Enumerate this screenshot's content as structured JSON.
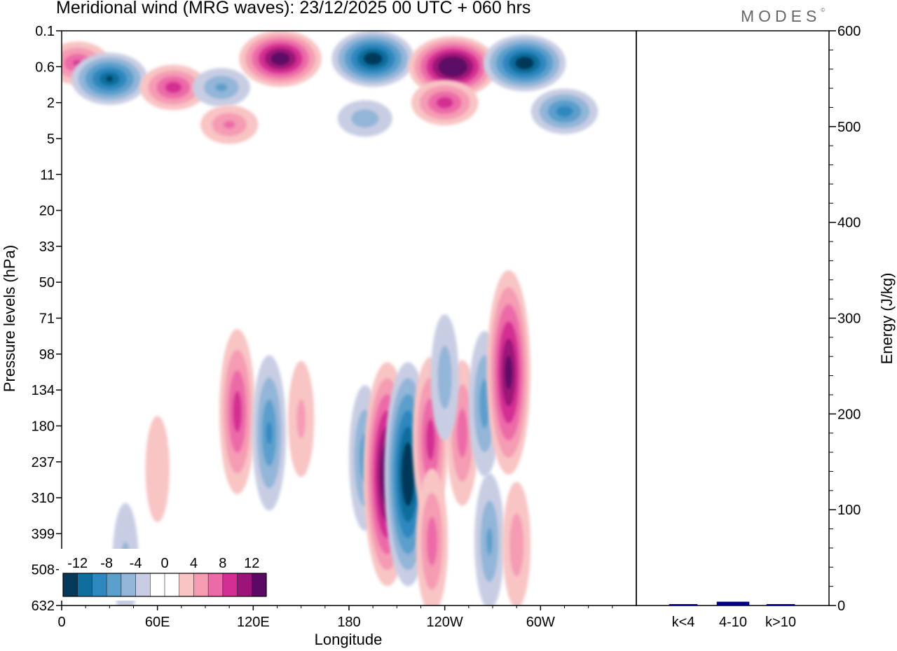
{
  "chart_data": [
    {
      "type": "heatmap",
      "title": "Meridional wind (MRG waves):  23/12/2025  00 UTC  + 060 hrs",
      "xlabel": "Longitude",
      "ylabel": "Pressure levels (hPa)",
      "x_ticks": [
        "0",
        "60E",
        "120E",
        "180",
        "120W",
        "60W"
      ],
      "y_ticks": [
        "0.1",
        "0.6",
        "2",
        "5",
        "11",
        "20",
        "33",
        "50",
        "71",
        "98",
        "134",
        "180",
        "237",
        "310",
        "399",
        "508",
        "632"
      ],
      "colorbar": {
        "labels": [
          "-12",
          "-8",
          "-4",
          "0",
          "4",
          "8",
          "12"
        ],
        "colors": [
          "#06385a",
          "#0f6e9e",
          "#2e88bf",
          "#5b9fcc",
          "#92b5d8",
          "#c8cde3",
          "#ffffff",
          "#ffffff",
          "#f8c4c4",
          "#f59bb3",
          "#ec6aa8",
          "#d42d93",
          "#9c1477",
          "#5c0966"
        ]
      },
      "features": [
        {
          "lon": 10,
          "level": 0.5,
          "value": 8
        },
        {
          "lon": 30,
          "level": 0.9,
          "value": -12
        },
        {
          "lon": 70,
          "level": 1.2,
          "value": 9
        },
        {
          "lon": 100,
          "level": 1.2,
          "value": -6
        },
        {
          "lon": 137,
          "level": 0.4,
          "value": 14
        },
        {
          "lon": 195,
          "level": 0.4,
          "value": -14
        },
        {
          "lon": 245,
          "level": 0.6,
          "value": 16
        },
        {
          "lon": 290,
          "level": 0.5,
          "value": -14
        },
        {
          "lon": 240,
          "level": 2.0,
          "value": 9
        },
        {
          "lon": 315,
          "level": 2.5,
          "value": -9
        },
        {
          "lon": 105,
          "level": 3.5,
          "value": 6
        },
        {
          "lon": 190,
          "level": 3.0,
          "value": -5
        },
        {
          "lon": 110,
          "level": 160,
          "value": 9
        },
        {
          "lon": 130,
          "level": 190,
          "value": -8
        },
        {
          "lon": 150,
          "level": 170,
          "value": 4
        },
        {
          "lon": 190,
          "level": 230,
          "value": -7
        },
        {
          "lon": 204,
          "level": 260,
          "value": 15
        },
        {
          "lon": 217,
          "level": 260,
          "value": -15
        },
        {
          "lon": 231,
          "level": 200,
          "value": 9
        },
        {
          "lon": 232,
          "level": 420,
          "value": 7
        },
        {
          "lon": 251,
          "level": 190,
          "value": 7
        },
        {
          "lon": 265,
          "level": 150,
          "value": -7
        },
        {
          "lon": 268,
          "level": 420,
          "value": -6
        },
        {
          "lon": 285,
          "level": 430,
          "value": 5
        },
        {
          "lon": 280,
          "level": 115,
          "value": 13
        },
        {
          "lon": 240,
          "level": 120,
          "value": -5
        },
        {
          "lon": 40,
          "level": 480,
          "value": -4
        },
        {
          "lon": 60,
          "level": 250,
          "value": 3
        }
      ]
    },
    {
      "type": "bar",
      "categories": [
        "k<4",
        "4-10",
        "k>10"
      ],
      "values": [
        0.5,
        3,
        0.5
      ],
      "ylabel": "Energy (J/kg)",
      "ylim": [
        0,
        600
      ],
      "y_ticks": [
        "0",
        "100",
        "200",
        "300",
        "400",
        "500",
        "600"
      ],
      "bar_color": "#00008b"
    }
  ],
  "brand": "MODES"
}
